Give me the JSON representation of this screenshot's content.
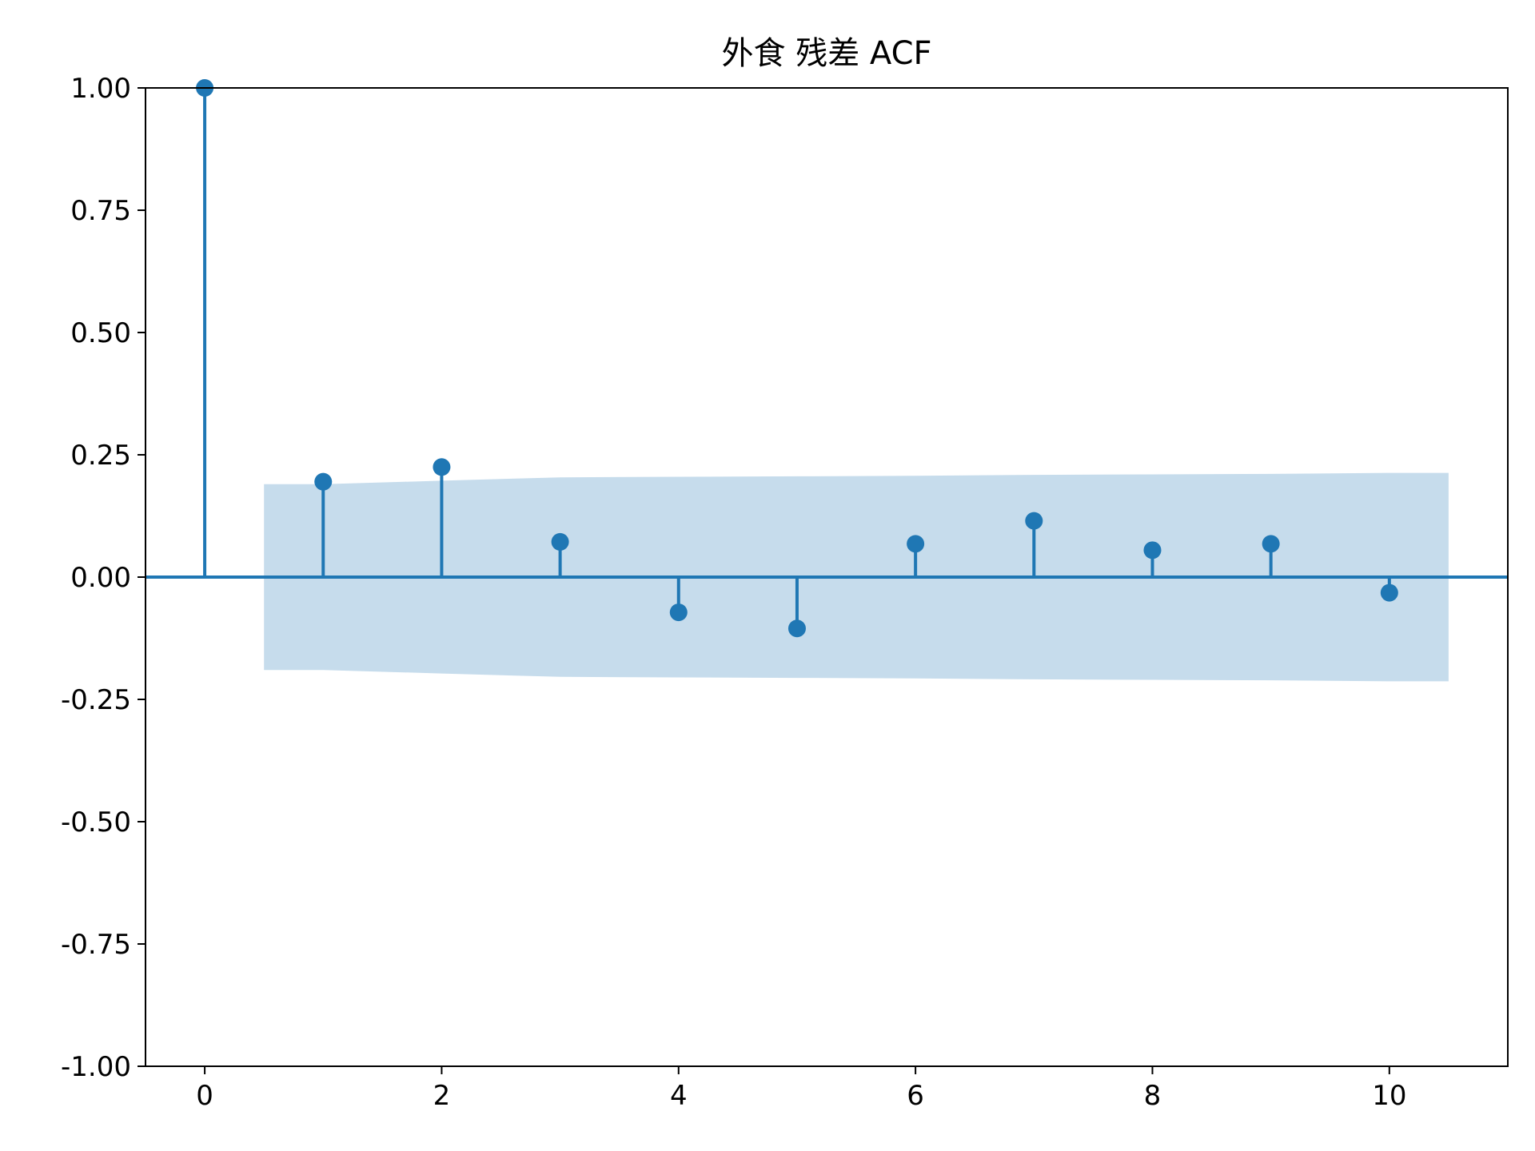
{
  "chart_data": {
    "type": "stem",
    "title": "外食 残差 ACF",
    "xlabel": "",
    "ylabel": "",
    "x": [
      0,
      1,
      2,
      3,
      4,
      5,
      6,
      7,
      8,
      9,
      10
    ],
    "values": [
      1.0,
      0.195,
      0.225,
      0.072,
      -0.072,
      -0.105,
      0.068,
      0.115,
      0.055,
      0.068,
      -0.032
    ],
    "confidence_band": {
      "x": [
        0.5,
        1,
        2,
        3,
        4,
        5,
        6,
        7,
        8,
        9,
        10,
        10.5
      ],
      "upper": [
        0.19,
        0.19,
        0.197,
        0.204,
        0.205,
        0.206,
        0.207,
        0.209,
        0.21,
        0.211,
        0.213,
        0.213
      ],
      "lower": [
        -0.19,
        -0.19,
        -0.197,
        -0.204,
        -0.205,
        -0.206,
        -0.207,
        -0.209,
        -0.21,
        -0.211,
        -0.213,
        -0.213
      ]
    },
    "xlim": [
      -0.5,
      11
    ],
    "ylim": [
      -1.0,
      1.0
    ],
    "xticks": [
      0,
      2,
      4,
      6,
      8,
      10
    ],
    "xtick_labels": [
      "0",
      "2",
      "4",
      "6",
      "8",
      "10"
    ],
    "yticks": [
      -1.0,
      -0.75,
      -0.5,
      -0.25,
      0.0,
      0.25,
      0.5,
      0.75,
      1.0
    ],
    "ytick_labels": [
      "-1.00",
      "-0.75",
      "-0.50",
      "-0.25",
      "0.00",
      "0.25",
      "0.50",
      "0.75",
      "1.00"
    ],
    "grid": false,
    "colors": {
      "stem": "#1f77b4",
      "band": "#c6dcec",
      "axis": "#000000"
    }
  }
}
